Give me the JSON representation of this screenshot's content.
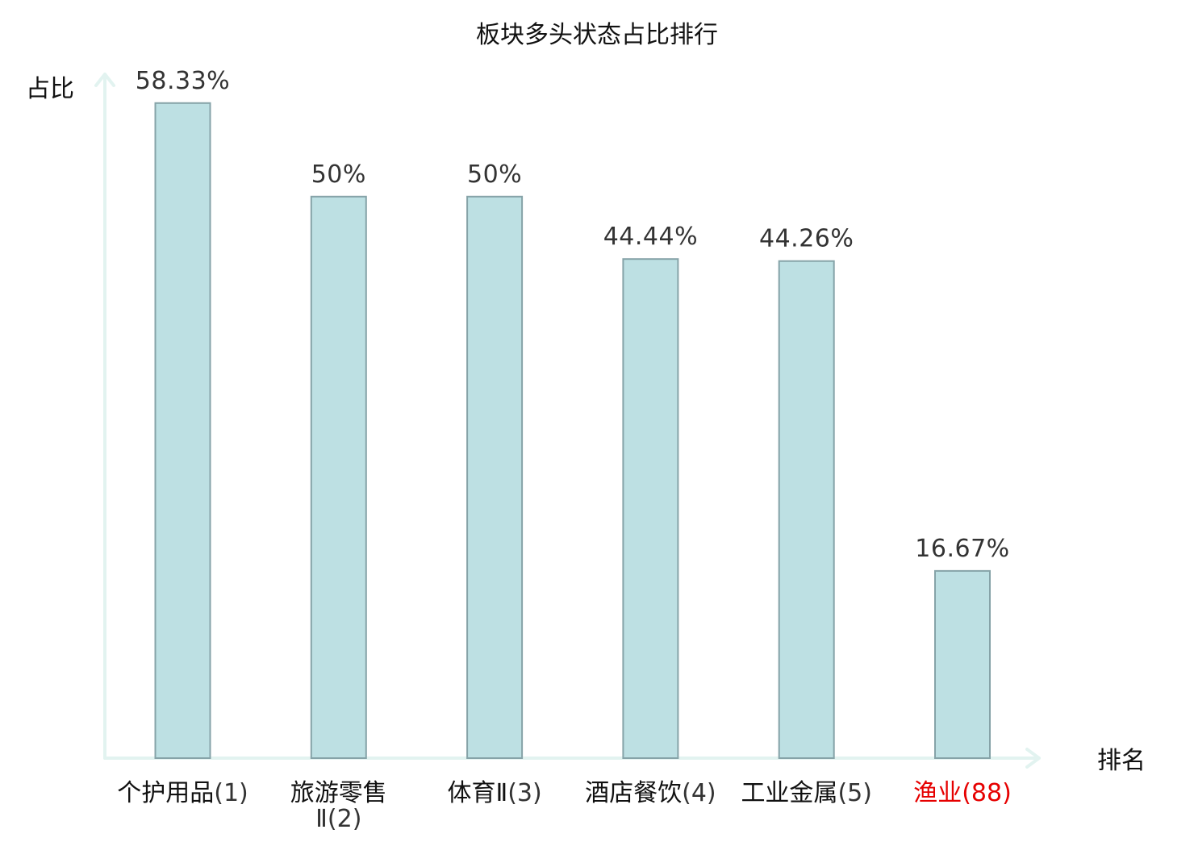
{
  "chart_data": {
    "type": "bar",
    "title": "板块多头状态占比排行",
    "ylabel": "占比",
    "xlabel": "排名",
    "ylim": [
      0,
      60.9
    ],
    "grid": false,
    "legend": "none",
    "categories": [
      {
        "name": "个护用品",
        "rank": "(1)"
      },
      {
        "name": "旅游零售Ⅱ",
        "rank": "(2)"
      },
      {
        "name": "体育Ⅱ",
        "rank": "(3)"
      },
      {
        "name": "酒店餐饮",
        "rank": "(4)"
      },
      {
        "name": "工业金属",
        "rank": "(5)"
      },
      {
        "name": "渔业",
        "rank": "(88)"
      }
    ],
    "values": [
      58.33,
      50,
      50,
      44.44,
      44.26,
      16.67
    ],
    "value_labels": [
      "58.33%",
      "50%",
      "50%",
      "44.44%",
      "44.26%",
      "16.67%"
    ],
    "colors": {
      "bar_fill": "#bde0e3",
      "bar_stroke": "#86a3a8",
      "axis": "#e2f3f0",
      "name_text": "#111111",
      "rank_text": "#333333",
      "highlight_text": "#e60000"
    },
    "highlight_index": 5
  }
}
